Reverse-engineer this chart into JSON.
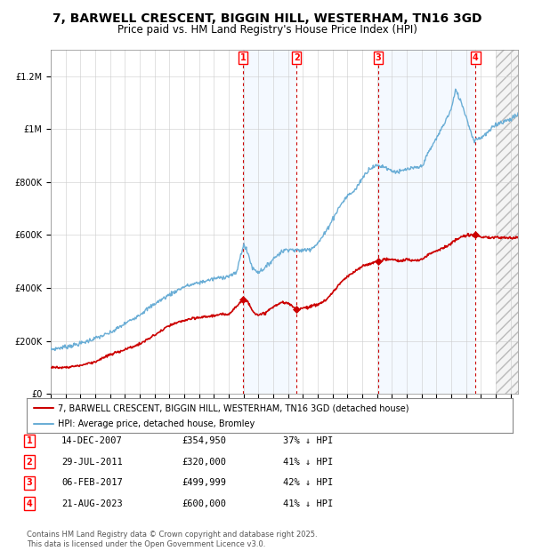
{
  "title": "7, BARWELL CRESCENT, BIGGIN HILL, WESTERHAM, TN16 3GD",
  "subtitle": "Price paid vs. HM Land Registry's House Price Index (HPI)",
  "ylim": [
    0,
    1300000
  ],
  "yticks": [
    0,
    200000,
    400000,
    600000,
    800000,
    1000000,
    1200000
  ],
  "ytick_labels": [
    "£0",
    "£200K",
    "£400K",
    "£600K",
    "£800K",
    "£1M",
    "£1.2M"
  ],
  "background_color": "#ffffff",
  "hpi_color": "#6baed6",
  "price_color": "#cc0000",
  "shade_color": "#ddeeff",
  "title_fontsize": 10,
  "subtitle_fontsize": 8.5,
  "tick_fontsize": 7,
  "purchases": [
    {
      "label": "1",
      "year_x": 2007.95,
      "price": 354950,
      "date": "14-DEC-2007",
      "price_str": "£354,950",
      "pct": "37% ↓ HPI"
    },
    {
      "label": "2",
      "year_x": 2011.57,
      "price": 320000,
      "date": "29-JUL-2011",
      "price_str": "£320,000",
      "pct": "41% ↓ HPI"
    },
    {
      "label": "3",
      "year_x": 2017.09,
      "price": 499999,
      "date": "06-FEB-2017",
      "price_str": "£499,999",
      "pct": "42% ↓ HPI"
    },
    {
      "label": "4",
      "year_x": 2023.64,
      "price": 600000,
      "date": "21-AUG-2023",
      "price_str": "£600,000",
      "pct": "41% ↓ HPI"
    }
  ],
  "shade_ranges": [
    [
      2007.95,
      2011.57
    ],
    [
      2017.09,
      2023.64
    ]
  ],
  "hatch_start": 2025.0,
  "xmin": 1995,
  "xmax": 2026.5,
  "legend_line1": "7, BARWELL CRESCENT, BIGGIN HILL, WESTERHAM, TN16 3GD (detached house)",
  "legend_line2": "HPI: Average price, detached house, Bromley",
  "footer": "Contains HM Land Registry data © Crown copyright and database right 2025.\nThis data is licensed under the Open Government Licence v3.0.",
  "hpi_anchors": [
    [
      1995.0,
      168000
    ],
    [
      1996.0,
      178000
    ],
    [
      1997.0,
      190000
    ],
    [
      1998.0,
      210000
    ],
    [
      1999.0,
      230000
    ],
    [
      2000.0,
      265000
    ],
    [
      2001.0,
      300000
    ],
    [
      2002.0,
      340000
    ],
    [
      2003.0,
      375000
    ],
    [
      2004.0,
      405000
    ],
    [
      2005.0,
      420000
    ],
    [
      2006.0,
      435000
    ],
    [
      2007.0,
      445000
    ],
    [
      2007.5,
      455000
    ],
    [
      2008.0,
      565000
    ],
    [
      2008.3,
      530000
    ],
    [
      2008.6,
      475000
    ],
    [
      2009.0,
      460000
    ],
    [
      2009.5,
      478000
    ],
    [
      2010.0,
      510000
    ],
    [
      2010.5,
      535000
    ],
    [
      2011.0,
      548000
    ],
    [
      2011.5,
      542000
    ],
    [
      2012.0,
      542000
    ],
    [
      2012.5,
      548000
    ],
    [
      2013.0,
      568000
    ],
    [
      2013.5,
      608000
    ],
    [
      2014.0,
      660000
    ],
    [
      2014.5,
      710000
    ],
    [
      2015.0,
      748000
    ],
    [
      2015.5,
      768000
    ],
    [
      2016.0,
      815000
    ],
    [
      2016.5,
      852000
    ],
    [
      2017.0,
      862000
    ],
    [
      2017.5,
      858000
    ],
    [
      2018.0,
      842000
    ],
    [
      2018.5,
      838000
    ],
    [
      2019.0,
      848000
    ],
    [
      2019.5,
      852000
    ],
    [
      2020.0,
      858000
    ],
    [
      2020.5,
      915000
    ],
    [
      2021.0,
      965000
    ],
    [
      2021.5,
      1018000
    ],
    [
      2022.0,
      1075000
    ],
    [
      2022.3,
      1148000
    ],
    [
      2022.7,
      1098000
    ],
    [
      2023.0,
      1048000
    ],
    [
      2023.5,
      958000
    ],
    [
      2024.0,
      968000
    ],
    [
      2024.5,
      988000
    ],
    [
      2025.0,
      1018000
    ],
    [
      2026.0,
      1038000
    ],
    [
      2026.5,
      1055000
    ]
  ],
  "price_anchors": [
    [
      1995.0,
      100000
    ],
    [
      1996.0,
      100000
    ],
    [
      1997.0,
      108000
    ],
    [
      1998.0,
      122000
    ],
    [
      1999.0,
      148000
    ],
    [
      2000.0,
      168000
    ],
    [
      2001.0,
      188000
    ],
    [
      2002.0,
      222000
    ],
    [
      2003.0,
      258000
    ],
    [
      2004.0,
      278000
    ],
    [
      2005.0,
      288000
    ],
    [
      2006.0,
      296000
    ],
    [
      2007.0,
      302000
    ],
    [
      2007.95,
      354950
    ],
    [
      2008.3,
      348000
    ],
    [
      2008.7,
      308000
    ],
    [
      2009.0,
      295000
    ],
    [
      2009.5,
      308000
    ],
    [
      2010.0,
      328000
    ],
    [
      2010.5,
      345000
    ],
    [
      2011.0,
      342000
    ],
    [
      2011.57,
      320000
    ],
    [
      2012.0,
      325000
    ],
    [
      2012.5,
      330000
    ],
    [
      2013.0,
      338000
    ],
    [
      2013.5,
      352000
    ],
    [
      2014.0,
      382000
    ],
    [
      2014.5,
      418000
    ],
    [
      2015.0,
      442000
    ],
    [
      2015.5,
      462000
    ],
    [
      2016.0,
      482000
    ],
    [
      2016.5,
      492000
    ],
    [
      2017.09,
      499999
    ],
    [
      2017.5,
      508000
    ],
    [
      2018.0,
      508000
    ],
    [
      2018.5,
      502000
    ],
    [
      2019.0,
      508000
    ],
    [
      2019.5,
      502000
    ],
    [
      2020.0,
      508000
    ],
    [
      2020.5,
      528000
    ],
    [
      2021.0,
      542000
    ],
    [
      2021.5,
      552000
    ],
    [
      2022.0,
      568000
    ],
    [
      2022.5,
      588000
    ],
    [
      2023.0,
      598000
    ],
    [
      2023.64,
      600000
    ],
    [
      2024.0,
      592000
    ],
    [
      2024.5,
      588000
    ],
    [
      2025.0,
      592000
    ],
    [
      2026.0,
      588000
    ],
    [
      2026.5,
      592000
    ]
  ]
}
